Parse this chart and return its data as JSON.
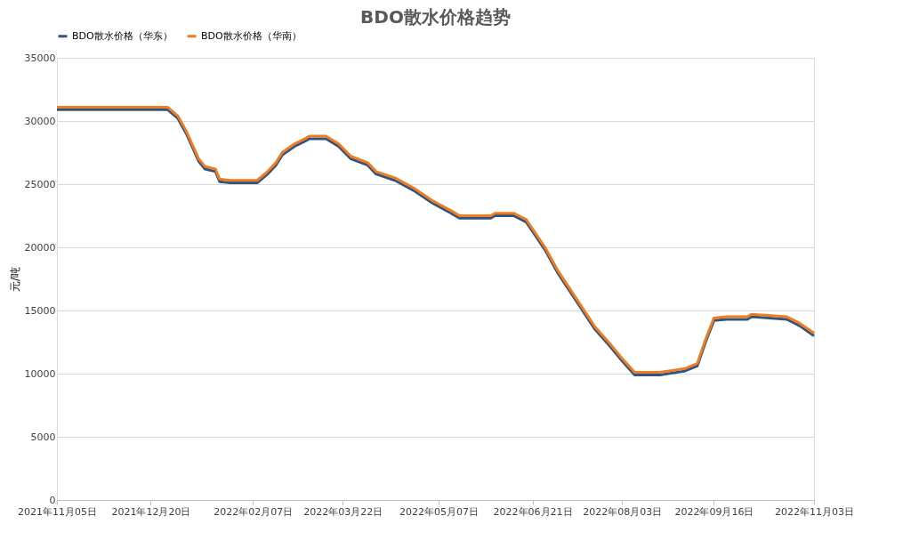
{
  "chart_data": {
    "type": "line",
    "title": "BDO散水价格趋势",
    "ylabel": "元/吨",
    "x": [
      "2021-11-05",
      "2021-12-28",
      "2022-01-02",
      "2022-01-06",
      "2022-01-12",
      "2022-01-15",
      "2022-01-20",
      "2022-01-22",
      "2022-01-27",
      "2022-02-09",
      "2022-02-14",
      "2022-02-18",
      "2022-02-21",
      "2022-02-27",
      "2022-03-04",
      "2022-03-06",
      "2022-03-14",
      "2022-03-20",
      "2022-03-26",
      "2022-04-03",
      "2022-04-07",
      "2022-04-16",
      "2022-04-25",
      "2022-05-04",
      "2022-05-13",
      "2022-05-17",
      "2022-06-01",
      "2022-06-03",
      "2022-06-12",
      "2022-06-18",
      "2022-06-27",
      "2022-07-03",
      "2022-07-13",
      "2022-07-21",
      "2022-07-28",
      "2022-08-03",
      "2022-08-09",
      "2022-08-21",
      "2022-09-02",
      "2022-09-08",
      "2022-09-12",
      "2022-09-16",
      "2022-09-22",
      "2022-10-02",
      "2022-10-04",
      "2022-10-21",
      "2022-10-27",
      "2022-11-03"
    ],
    "series": [
      {
        "name": "BDO散水价格（华东）",
        "color": "#2f5480",
        "values": [
          30900,
          30900,
          30200,
          29000,
          26800,
          26200,
          26000,
          25200,
          25100,
          25100,
          25800,
          26500,
          27300,
          28000,
          28400,
          28600,
          28600,
          28000,
          27000,
          26500,
          25800,
          25300,
          24500,
          23500,
          22700,
          22300,
          22300,
          22500,
          22500,
          22000,
          19800,
          18000,
          15500,
          13500,
          12200,
          11000,
          9900,
          9900,
          10200,
          10600,
          12500,
          14200,
          14300,
          14300,
          14500,
          14300,
          13800,
          13000
        ]
      },
      {
        "name": "BDO散水价格（华南）",
        "color": "#f07c22",
        "values": [
          31100,
          31100,
          30400,
          29200,
          27000,
          26400,
          26200,
          25400,
          25300,
          25300,
          26000,
          26700,
          27500,
          28200,
          28600,
          28800,
          28800,
          28200,
          27200,
          26700,
          26000,
          25500,
          24700,
          23700,
          22900,
          22500,
          22500,
          22700,
          22700,
          22200,
          20000,
          18200,
          15700,
          13700,
          12400,
          11200,
          10100,
          10100,
          10400,
          10800,
          12700,
          14400,
          14500,
          14500,
          14700,
          14500,
          14000,
          13200
        ]
      }
    ],
    "ylim": [
      0,
      35000
    ],
    "yticks": [
      0,
      5000,
      10000,
      15000,
      20000,
      25000,
      30000,
      35000
    ],
    "xlim": [
      "2021-11-05",
      "2022-11-03"
    ],
    "xticks": [
      {
        "value": "2021-11-05",
        "label": "2021年11月05日"
      },
      {
        "value": "2021-12-20",
        "label": "2021年12月20日"
      },
      {
        "value": "2022-02-07",
        "label": "2022年02月07日"
      },
      {
        "value": "2022-03-22",
        "label": "2022年03月22日"
      },
      {
        "value": "2022-05-07",
        "label": "2022年05月07日"
      },
      {
        "value": "2022-06-21",
        "label": "2022年06月21日"
      },
      {
        "value": "2022-08-03",
        "label": "2022年08月03日"
      },
      {
        "value": "2022-09-16",
        "label": "2022年09月16日"
      },
      {
        "value": "2022-11-03",
        "label": "2022年11月03日"
      }
    ],
    "grid": "y",
    "legend": "top",
    "marker": "none",
    "line_style": "solid"
  }
}
